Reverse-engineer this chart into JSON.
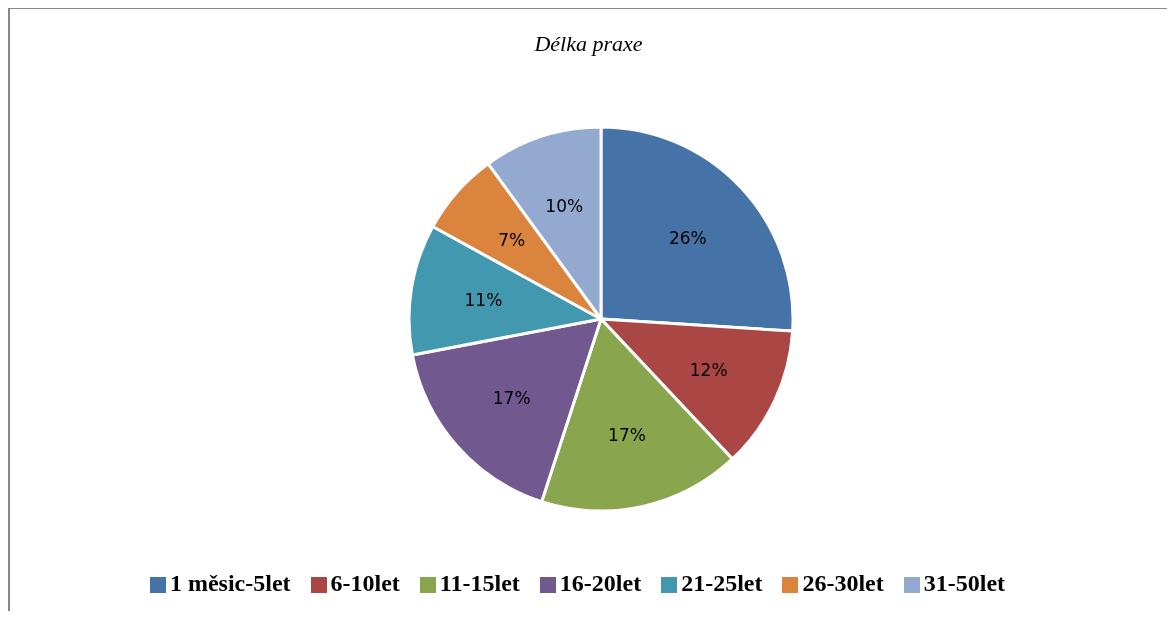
{
  "chart_data": {
    "type": "pie",
    "title": "Délka praxe",
    "categories": [
      "1 měsic-5let",
      "6-10let",
      "11-15let",
      "16-20let",
      "21-25let",
      "26-30let",
      "31-50let"
    ],
    "values": [
      26,
      12,
      17,
      17,
      11,
      7,
      10
    ],
    "value_labels": [
      "26%",
      "12%",
      "17%",
      "17%",
      "11%",
      "7%",
      "10%"
    ],
    "colors": [
      "#4572a7",
      "#aa4643",
      "#89a54e",
      "#71588f",
      "#4198af",
      "#db843d",
      "#93a9cf"
    ],
    "legend": "bottom"
  }
}
